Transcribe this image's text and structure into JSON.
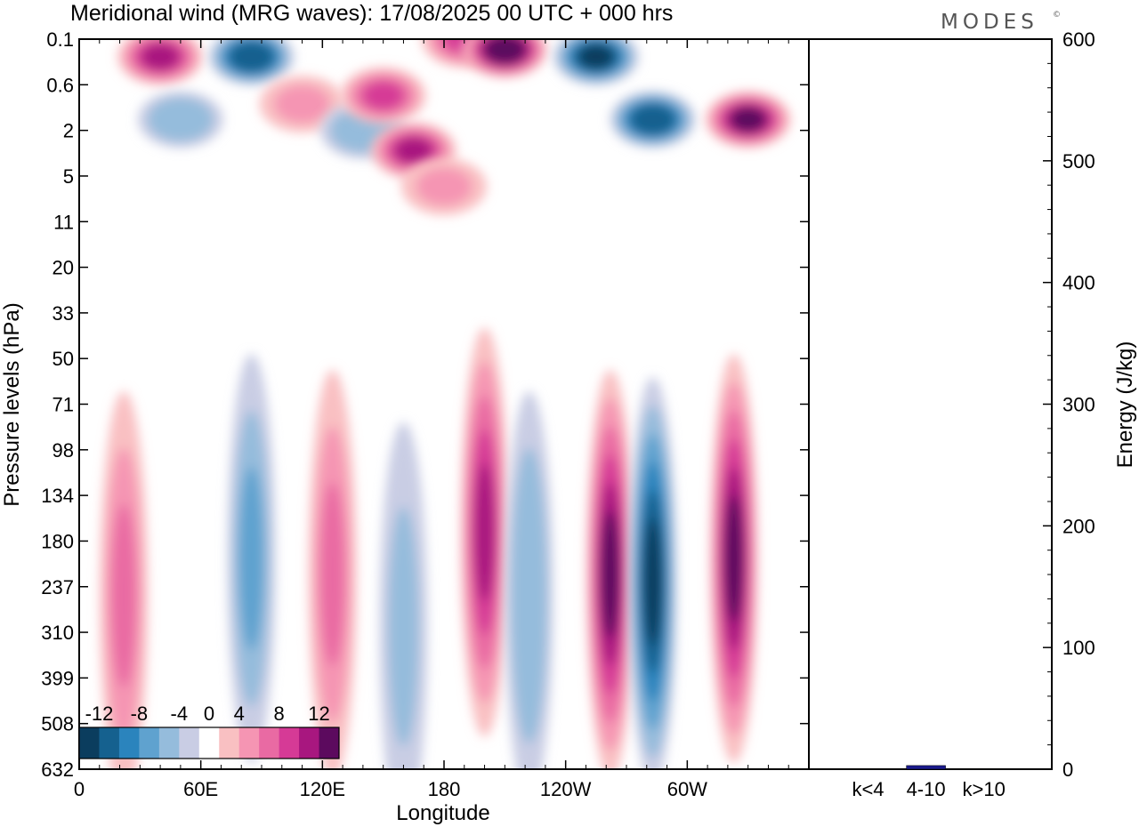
{
  "title": "Meridional wind (MRG waves):  17/08/2025  00 UTC  + 000 hrs",
  "brand": "MODES",
  "brand_mark": "©",
  "chart_data": [
    {
      "type": "heatmap",
      "title": "Meridional wind (MRG waves)",
      "xlabel": "Longitude",
      "ylabel": "Pressure levels (hPa)",
      "x_ticks": [
        "0",
        "60E",
        "120E",
        "180",
        "120W",
        "60W"
      ],
      "x_tick_values": [
        0,
        60,
        120,
        180,
        240,
        300
      ],
      "xlim": [
        0,
        360
      ],
      "y_ticks": [
        "0.1",
        "0.6",
        "2",
        "5",
        "11",
        "20",
        "33",
        "50",
        "71",
        "98",
        "134",
        "180",
        "237",
        "310",
        "399",
        "508",
        "632"
      ],
      "colorbar": {
        "labels": [
          "-12",
          "-8",
          "-4",
          "0",
          "4",
          "8",
          "12"
        ],
        "bins": [
          -14,
          -12,
          -10,
          -8,
          -6,
          -4,
          -2,
          2,
          4,
          6,
          8,
          10,
          12,
          14
        ],
        "colors": [
          "#0b3d5e",
          "#15618f",
          "#2b84bd",
          "#5fa2cf",
          "#95bcdc",
          "#c9cde4",
          "#ffffff",
          "#f9c0c2",
          "#f595b3",
          "#e96aa3",
          "#d63a96",
          "#a8177f",
          "#5c0a5e"
        ]
      },
      "features": [
        {
          "lon": 40,
          "level": "0.2",
          "value": 11
        },
        {
          "lon": 85,
          "level": "0.2",
          "value": -12
        },
        {
          "lon": 110,
          "level": "1",
          "value": 5
        },
        {
          "lon": 50,
          "level": "1.5",
          "value": -6
        },
        {
          "lon": 140,
          "level": "2",
          "value": -6
        },
        {
          "lon": 150,
          "level": "0.8",
          "value": 9
        },
        {
          "lon": 165,
          "level": "3",
          "value": 10
        },
        {
          "lon": 190,
          "level": "0.1",
          "value": 8
        },
        {
          "lon": 210,
          "level": "0.15",
          "value": 14
        },
        {
          "lon": 255,
          "level": "0.2",
          "value": -13
        },
        {
          "lon": 283,
          "level": "1.5",
          "value": -12
        },
        {
          "lon": 330,
          "level": "1.5",
          "value": 13
        },
        {
          "lon": 180,
          "level": "6",
          "value": 5
        },
        {
          "lon": 22,
          "level": "250",
          "value": 7
        },
        {
          "lon": 85,
          "level": "200",
          "value": -7
        },
        {
          "lon": 125,
          "level": "220",
          "value": 7
        },
        {
          "lon": 160,
          "level": "300",
          "value": -5
        },
        {
          "lon": 200,
          "level": "170",
          "value": 11
        },
        {
          "lon": 222,
          "level": "250",
          "value": -6
        },
        {
          "lon": 262,
          "level": "220",
          "value": 13
        },
        {
          "lon": 283,
          "level": "230",
          "value": -13
        },
        {
          "lon": 323,
          "level": "200",
          "value": 13
        }
      ]
    },
    {
      "type": "bar",
      "categories": [
        "k<4",
        "4-10",
        "k>10"
      ],
      "values": [
        0,
        3,
        0
      ],
      "ylabel": "Energy (J/kg)",
      "ylim": [
        0,
        600
      ],
      "y_ticks": [
        "0",
        "100",
        "200",
        "300",
        "400",
        "500",
        "600"
      ],
      "bar_color": "#1a1a8c"
    }
  ]
}
